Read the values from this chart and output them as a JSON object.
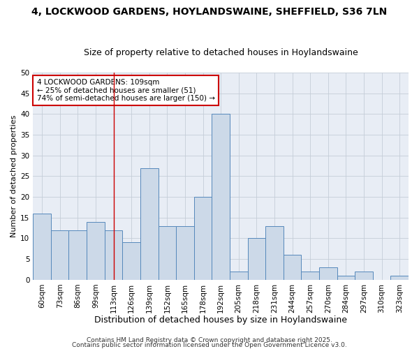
{
  "title_line1": "4, LOCKWOOD GARDENS, HOYLANDSWAINE, SHEFFIELD, S36 7LN",
  "title_line2": "Size of property relative to detached houses in Hoylandswaine",
  "xlabel": "Distribution of detached houses by size in Hoylandswaine",
  "ylabel": "Number of detached properties",
  "categories": [
    "60sqm",
    "73sqm",
    "86sqm",
    "99sqm",
    "113sqm",
    "126sqm",
    "139sqm",
    "152sqm",
    "165sqm",
    "178sqm",
    "192sqm",
    "205sqm",
    "218sqm",
    "231sqm",
    "244sqm",
    "257sqm",
    "270sqm",
    "284sqm",
    "297sqm",
    "310sqm",
    "323sqm"
  ],
  "values": [
    16,
    12,
    12,
    14,
    12,
    9,
    27,
    13,
    13,
    20,
    40,
    2,
    10,
    13,
    6,
    2,
    3,
    1,
    2,
    0,
    1
  ],
  "bar_color": "#ccd9e8",
  "bar_edge_color": "#5588bb",
  "red_line_index": 4.5,
  "annotation_text": "4 LOCKWOOD GARDENS: 109sqm\n← 25% of detached houses are smaller (51)\n74% of semi-detached houses are larger (150) →",
  "annotation_box_color": "#ffffff",
  "annotation_box_edge_color": "#cc0000",
  "ylim": [
    0,
    50
  ],
  "yticks": [
    0,
    5,
    10,
    15,
    20,
    25,
    30,
    35,
    40,
    45,
    50
  ],
  "footer_line1": "Contains HM Land Registry data © Crown copyright and database right 2025.",
  "footer_line2": "Contains public sector information licensed under the Open Government Licence v3.0.",
  "bg_color": "#ffffff",
  "plot_bg_color": "#e8edf5",
  "grid_color": "#c5cdd8",
  "title1_fontsize": 10,
  "title2_fontsize": 9,
  "xlabel_fontsize": 9,
  "ylabel_fontsize": 8,
  "tick_fontsize": 7.5,
  "annot_fontsize": 7.5,
  "footer_fontsize": 6.5
}
